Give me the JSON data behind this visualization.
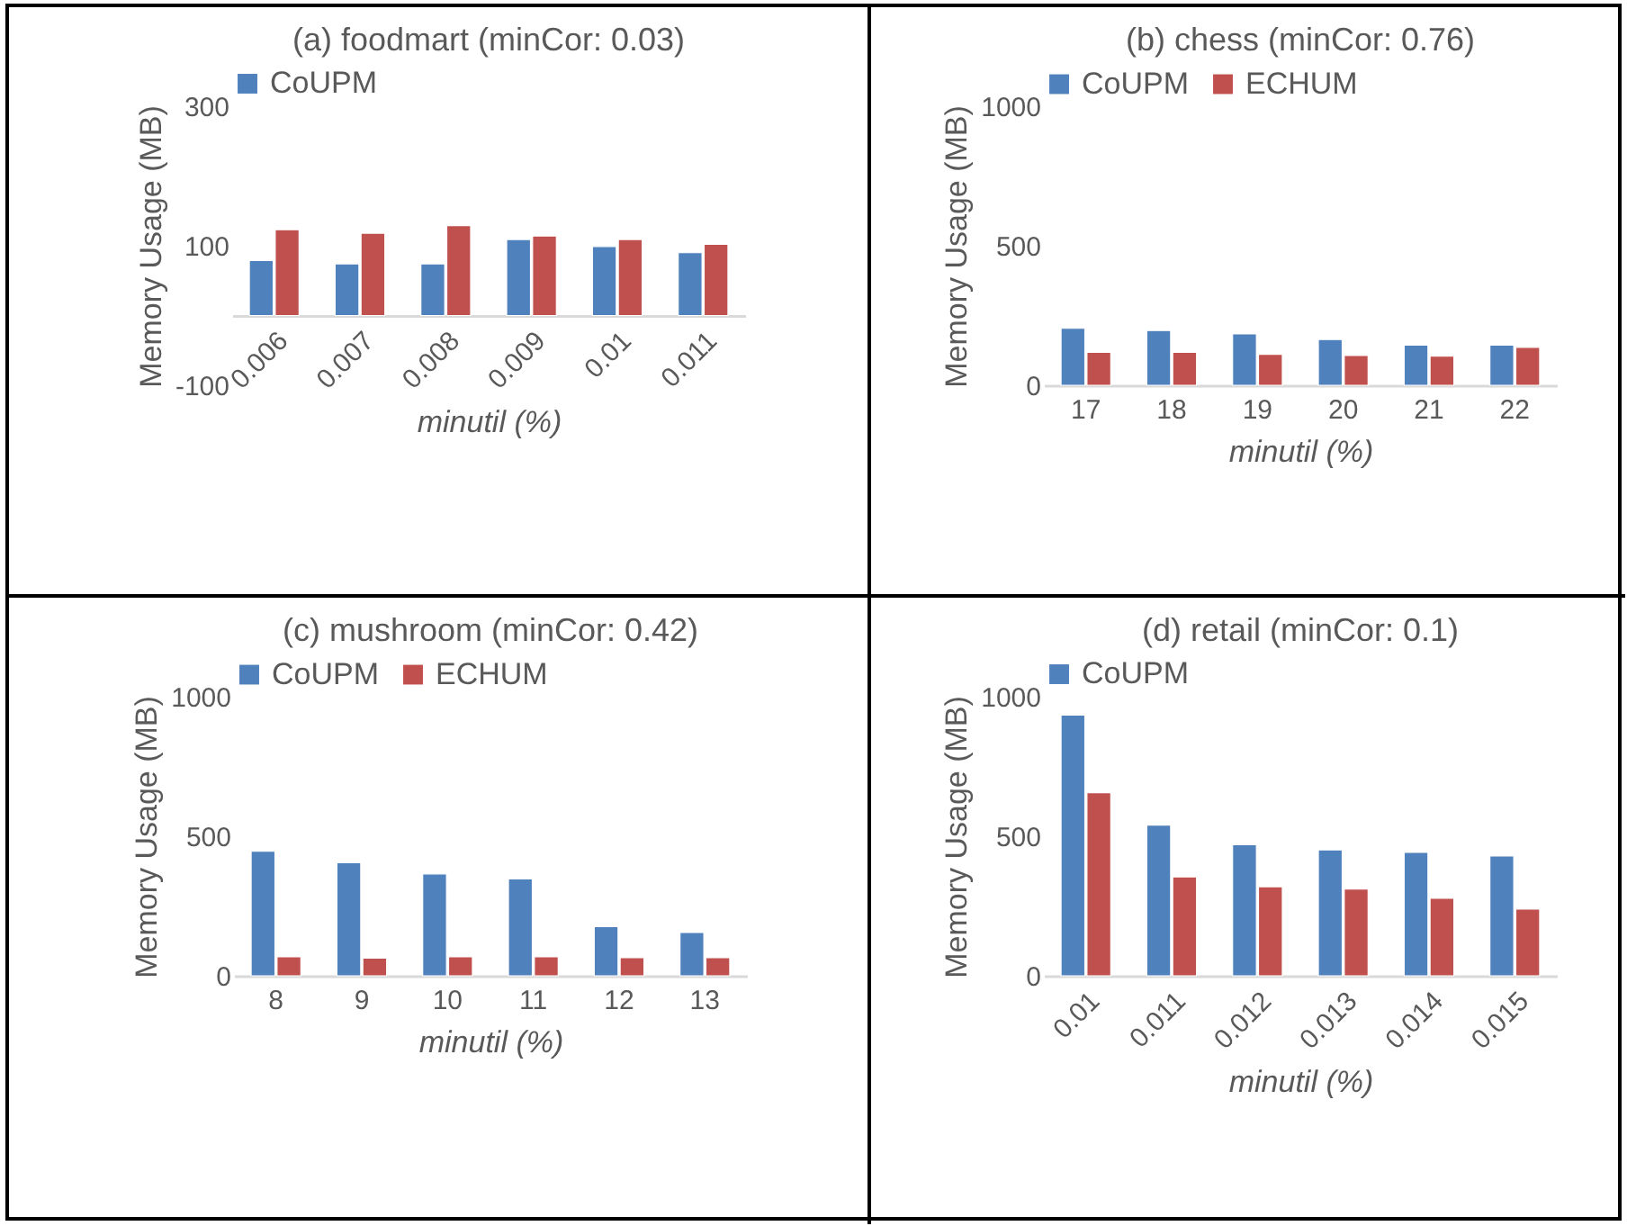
{
  "chart_data": [
    {
      "type": "bar",
      "title": "(a) foodmart (minCor: 0.03)",
      "xlabel": "minutil (%)",
      "ylabel": "Memory Usage (MB)",
      "categories": [
        "0.006",
        "0.007",
        "0.008",
        "0.009",
        "0.01",
        "0.011"
      ],
      "series": [
        {
          "name": "CoUPM",
          "color": "#4f81bd",
          "values": [
            79,
            74,
            74,
            109,
            99,
            90
          ]
        },
        {
          "color": "#c0504d",
          "values": [
            123,
            118,
            129,
            114,
            109,
            102
          ]
        }
      ],
      "ylim": [
        -100,
        300
      ],
      "yticks": [
        -100,
        100,
        300
      ],
      "grid": false,
      "legend": "top"
    },
    {
      "type": "bar",
      "title": "(b) chess (minCor: 0.76)",
      "xlabel": "minutil (%)",
      "ylabel": "Memory Usage (MB)",
      "categories": [
        "17",
        "18",
        "19",
        "20",
        "21",
        "22"
      ],
      "series": [
        {
          "name": "CoUPM",
          "color": "#4f81bd",
          "values": [
            204,
            196,
            184,
            164,
            144,
            144
          ]
        },
        {
          "name": "ECHUM",
          "color": "#c0504d",
          "values": [
            118,
            118,
            111,
            107,
            104,
            136
          ]
        }
      ],
      "ylim": [
        0,
        1000
      ],
      "yticks": [
        0,
        500,
        1000
      ],
      "grid": false,
      "legend": "top"
    },
    {
      "type": "bar",
      "title": "(c) mushroom (minCor: 0.42)",
      "xlabel": "minutil (%)",
      "ylabel": "Memory Usage (MB)",
      "categories": [
        "8",
        "9",
        "10",
        "11",
        "12",
        "13"
      ],
      "series": [
        {
          "name": "CoUPM",
          "color": "#4f81bd",
          "values": [
            446,
            405,
            365,
            347,
            176,
            155
          ]
        },
        {
          "name": "ECHUM",
          "color": "#c0504d",
          "values": [
            68,
            63,
            68,
            68,
            65,
            65
          ]
        }
      ],
      "ylim": [
        0,
        1000
      ],
      "yticks": [
        0,
        500,
        1000
      ],
      "grid": false,
      "legend": "top"
    },
    {
      "type": "bar",
      "title": "(d) retail (minCor: 0.1)",
      "xlabel": "minutil (%)",
      "ylabel": "Memory Usage (MB)",
      "categories": [
        "0.01",
        "0.011",
        "0.012",
        "0.013",
        "0.014",
        "0.015"
      ],
      "series": [
        {
          "name": "CoUPM",
          "color": "#4f81bd",
          "values": [
            934,
            540,
            470,
            451,
            442,
            429
          ]
        },
        {
          "color": "#c0504d",
          "values": [
            656,
            354,
            319,
            311,
            278,
            239
          ]
        }
      ],
      "ylim": [
        0,
        1000
      ],
      "yticks": [
        0,
        500,
        1000
      ],
      "grid": false,
      "legend": "top"
    }
  ]
}
